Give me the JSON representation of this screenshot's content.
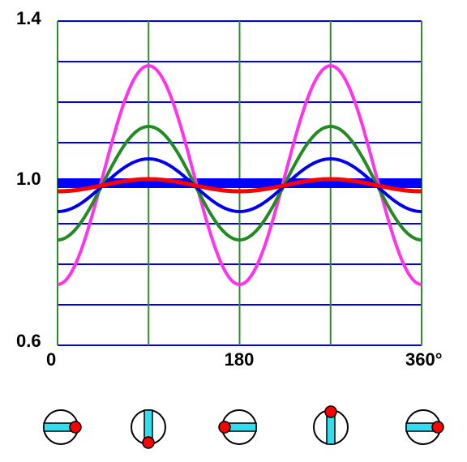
{
  "chart_data": {
    "type": "line",
    "xlim": [
      0,
      360
    ],
    "ylim": [
      0.6,
      1.4
    ],
    "y_tick_labels": [
      "1.4",
      "1.0",
      "0.6"
    ],
    "y_tick_values": [
      1.4,
      1.0,
      0.6
    ],
    "x_tick_labels": [
      "0",
      "180",
      "360°"
    ],
    "x_tick_values": [
      0,
      180,
      360
    ],
    "x_grid": [
      0,
      90,
      180,
      270,
      360
    ],
    "y_grid": [
      0.6,
      0.7,
      0.8,
      0.9,
      1.0,
      1.1,
      1.2,
      1.3,
      1.4
    ],
    "grid": true,
    "colors": {
      "vertical_grid": "#2e8b2e",
      "horizontal_grid": "#0000ee",
      "baseline_band": "#0000ff",
      "wheel_arm": "#33ddee",
      "wheel_pin": "#ff0000"
    },
    "series": [
      {
        "color": "#ff33ee",
        "x": [
          0,
          90,
          180,
          270,
          360
        ],
        "values": [
          0.75,
          1.29,
          0.75,
          1.29,
          0.75
        ]
      },
      {
        "color": "#228b22",
        "x": [
          0,
          90,
          180,
          270,
          360
        ],
        "values": [
          0.86,
          1.14,
          0.86,
          1.14,
          0.86
        ]
      },
      {
        "color": "#0000ee",
        "x": [
          0,
          90,
          180,
          270,
          360
        ],
        "values": [
          0.93,
          1.06,
          0.93,
          1.06,
          0.93
        ]
      },
      {
        "color": "#ff0000",
        "x": [
          0,
          90,
          180,
          270,
          360
        ],
        "values": [
          0.98,
          1.01,
          0.98,
          1.01,
          0.98
        ]
      }
    ],
    "wheel_positions": [
      0,
      90,
      180,
      270,
      360
    ]
  }
}
